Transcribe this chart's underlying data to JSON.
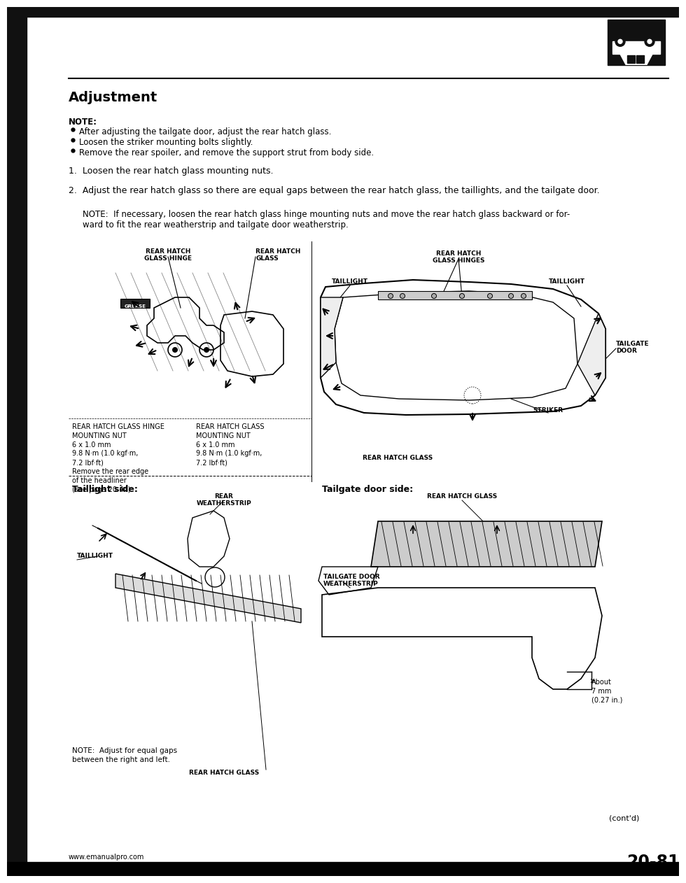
{
  "title": "Adjustment",
  "note_label": "NOTE:",
  "note_bullets": [
    "After adjusting the tailgate door, adjust the rear hatch glass.",
    "Loosen the striker mounting bolts slightly.",
    "Remove the rear spoiler, and remove the support strut from body side."
  ],
  "step1": "1.  Loosen the rear hatch glass mounting nuts.",
  "step2": "2.  Adjust the rear hatch glass so there are equal gaps between the rear hatch glass, the taillights, and the tailgate door.",
  "note2_line1": "NOTE:  If necessary, loosen the rear hatch glass hinge mounting nuts and move the rear hatch glass backward or for-",
  "note2_line2": "ward to fit the rear weatherstrip and tailgate door weatherstrip.",
  "section_number": "20-81",
  "website_left": "www.emanualpro.com",
  "contd": "(cont'd)",
  "bg_color": "#ffffff",
  "lbl_hinge_left": "REAR HATCH GLASS HINGE\nMOUNTING NUT\n6 x 1.0 mm\n9.8 N·m (1.0 kgf·m,\n7.2 lbf·ft)\nRemove the rear edge\nof the headliner\n(see page 20-44).",
  "lbl_nut_right": "REAR HATCH GLASS\nMOUNTING NUT\n6 x 1.0 mm\n9.8 N·m (1.0 kgf·m,\n7.2 lbf·ft)",
  "lbl_hinge_label": "REAR HATCH\nGLASS HINGE",
  "lbl_glass_label": "REAR HATCH\nGLASS",
  "lbl_hinges_right": "REAR HATCH\nGLASS HINGES",
  "lbl_taillight_left": "TAILLIGHT",
  "lbl_taillight_right": "TAILLIGHT",
  "lbl_tailgate_door": "TAILGATE\nDOOR",
  "lbl_striker": "STRIKER",
  "lbl_rear_hatch_glass_r": "REAR HATCH GLASS",
  "lbl_taillight_side": "Taillight side:",
  "lbl_tailgate_door_side": "Tailgate door side:",
  "lbl_rear_weatherstrip": "REAR\nWEATHERSTRIP",
  "lbl_taillight_bl": "TAILLIGHT",
  "lbl_note_bl": "NOTE:  Adjust for equal gaps\nbetween the right and left.",
  "lbl_rear_hatch_glass_bl": "REAR HATCH GLASS",
  "lbl_rear_hatch_glass_br": "REAR HATCH GLASS",
  "lbl_tailgate_ws": "TAILGATE DOOR\nWEATHERSTRIP",
  "lbl_about": "About\n7 mm\n(0.27 in.)"
}
